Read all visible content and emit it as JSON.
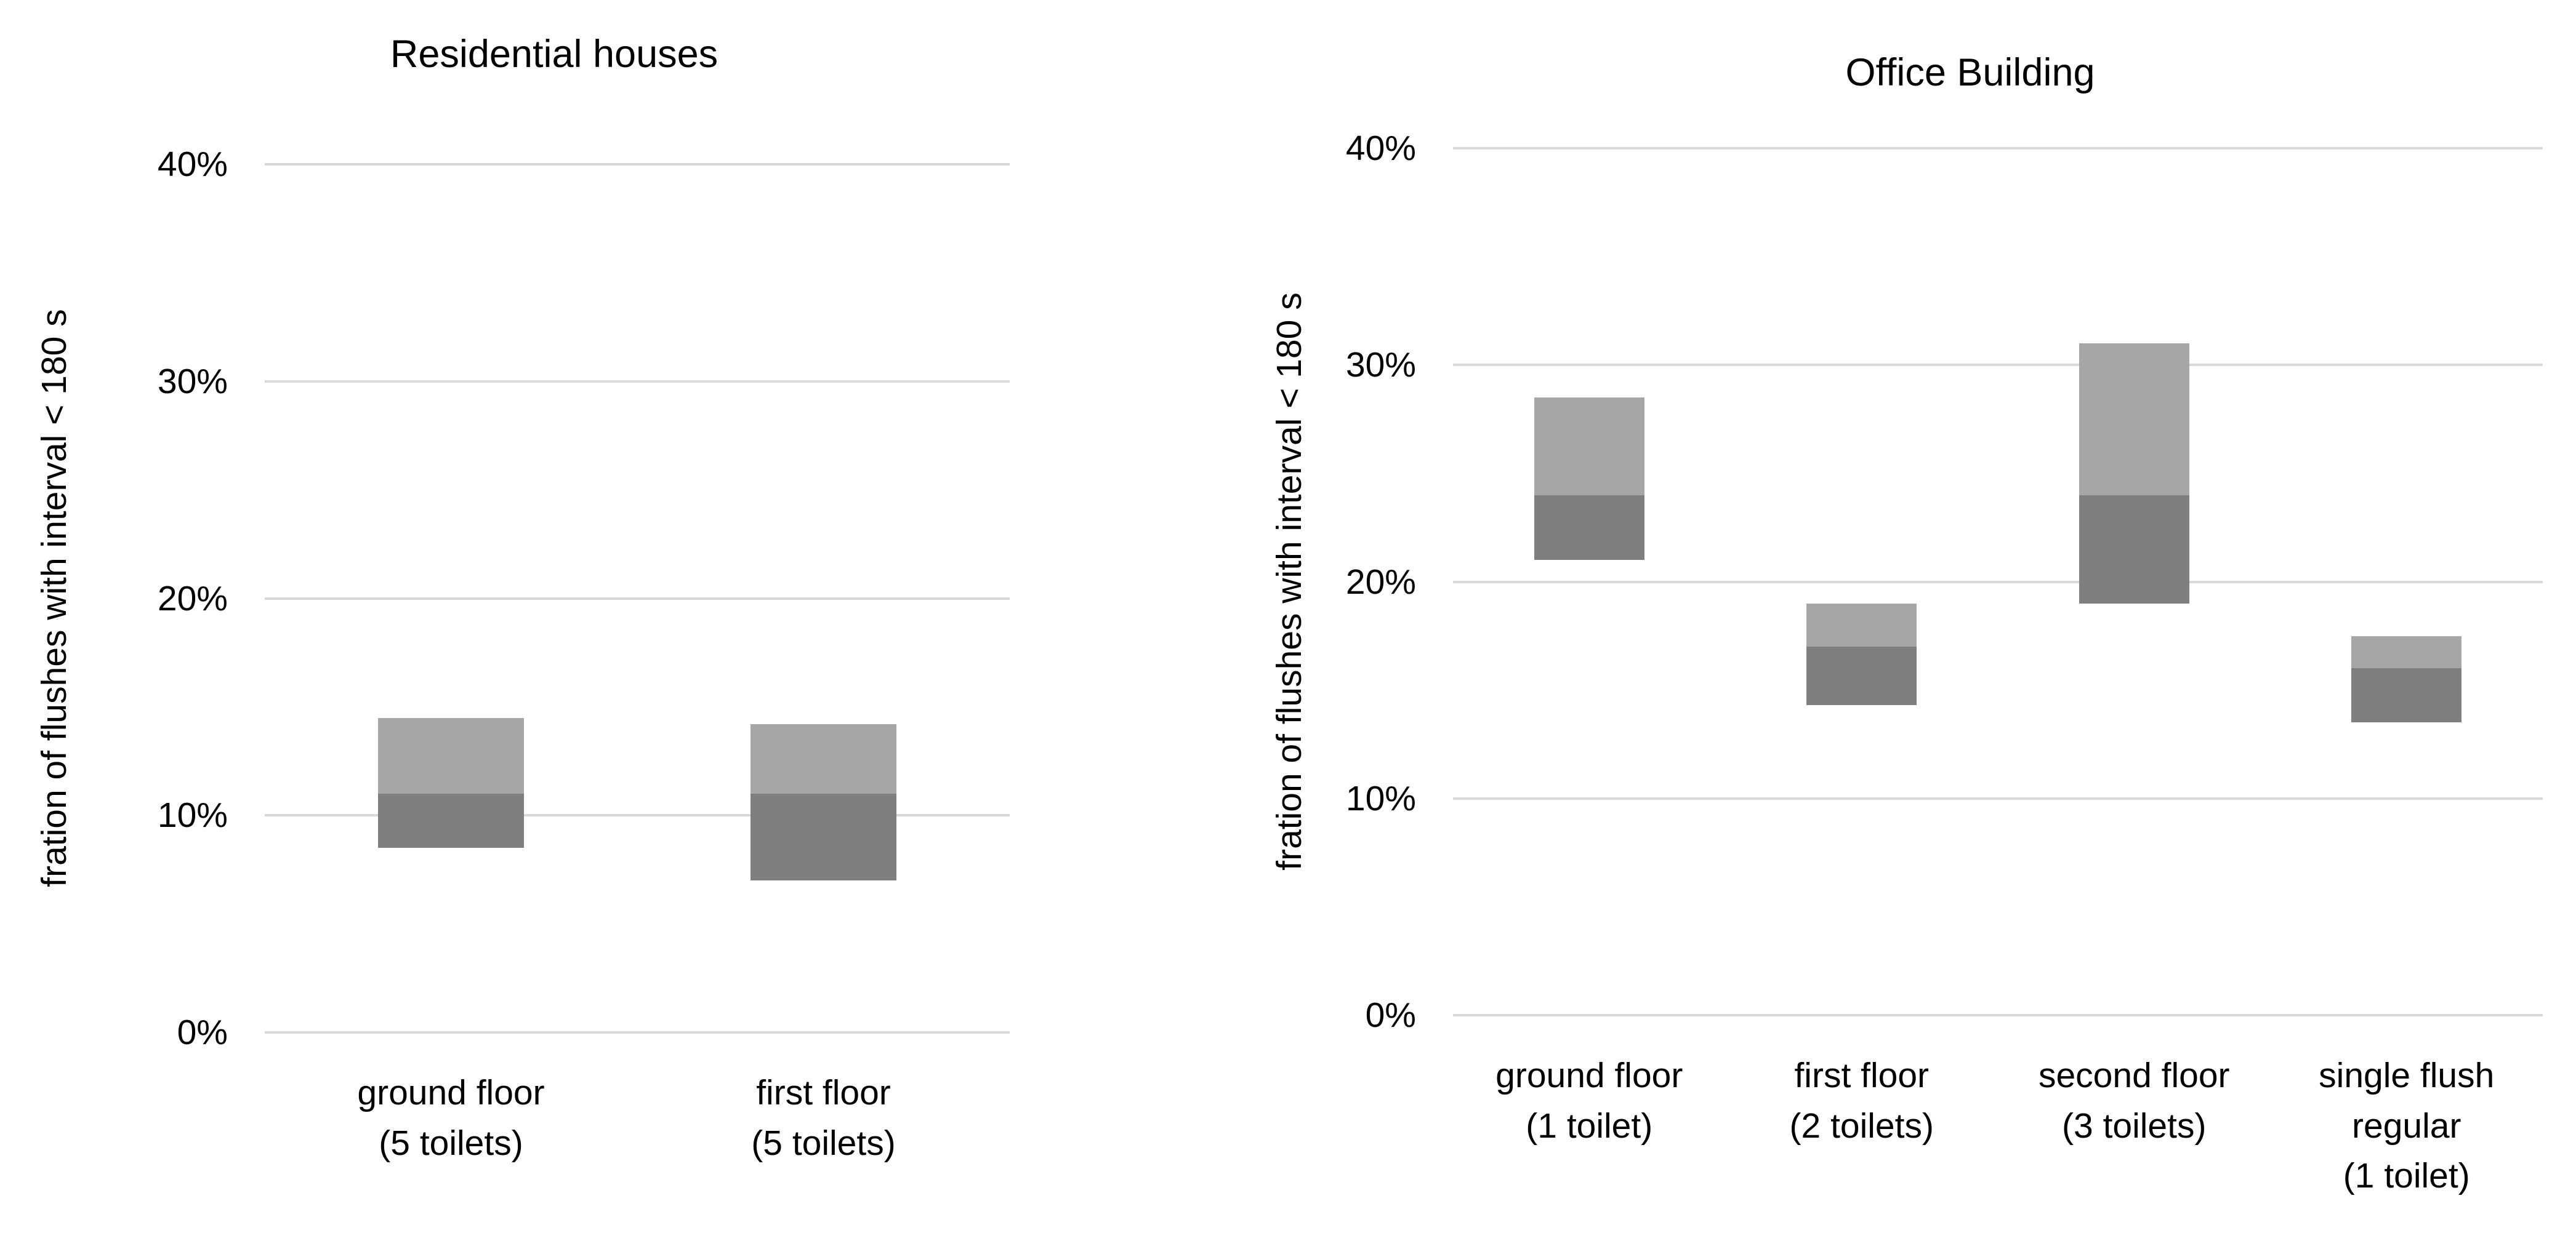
{
  "colors": {
    "bar_lower": "#7f7f7f",
    "bar_upper": "#a6a6a6",
    "gridline": "#d9d9d9",
    "text": "#000000",
    "background": "#ffffff"
  },
  "chart_data": [
    {
      "type": "bar",
      "subtype": "floating-range-two-tone",
      "title": "Residential houses",
      "xlabel": "",
      "ylabel": "fration of flushes with interval < 180 s",
      "ylim": [
        0,
        40
      ],
      "grid": true,
      "legend": null,
      "yticks": [
        {
          "label": "40%",
          "value": 40
        },
        {
          "label": "30%",
          "value": 30
        },
        {
          "label": "20%",
          "value": 20
        },
        {
          "label": "10%",
          "value": 10
        },
        {
          "label": "0%",
          "value": 0
        }
      ],
      "categories": [
        "ground floor\n(5 toilets)",
        "first floor\n(5 toilets)"
      ],
      "series": [
        {
          "name": "lower-range-dark-gray",
          "color_key": "bar_lower",
          "low": [
            8.5,
            7.0
          ],
          "high": [
            11.0,
            11.0
          ]
        },
        {
          "name": "upper-range-light-gray",
          "color_key": "bar_upper",
          "low": [
            11.0,
            11.0
          ],
          "high": [
            14.5,
            14.2
          ]
        }
      ]
    },
    {
      "type": "bar",
      "subtype": "floating-range-two-tone",
      "title": "Office Building",
      "xlabel": "",
      "ylabel": "fration of flushes with interval < 180 s",
      "ylim": [
        0,
        40
      ],
      "grid": true,
      "legend": null,
      "yticks": [
        {
          "label": "40%",
          "value": 40
        },
        {
          "label": "30%",
          "value": 30
        },
        {
          "label": "20%",
          "value": 20
        },
        {
          "label": "10%",
          "value": 10
        },
        {
          "label": "0%",
          "value": 0
        }
      ],
      "categories": [
        "ground floor\n(1 toilet)",
        "first floor\n(2 toilets)",
        "second floor\n(3 toilets)",
        "single flush\nregular\n(1 toilet)"
      ],
      "series": [
        {
          "name": "lower-range-dark-gray",
          "color_key": "bar_lower",
          "low": [
            21.0,
            14.3,
            19.0,
            13.5
          ],
          "high": [
            24.0,
            17.0,
            24.0,
            16.0
          ]
        },
        {
          "name": "upper-range-light-gray",
          "color_key": "bar_upper",
          "low": [
            24.0,
            17.0,
            24.0,
            16.0
          ],
          "high": [
            28.5,
            19.0,
            31.0,
            17.5
          ]
        }
      ]
    }
  ]
}
